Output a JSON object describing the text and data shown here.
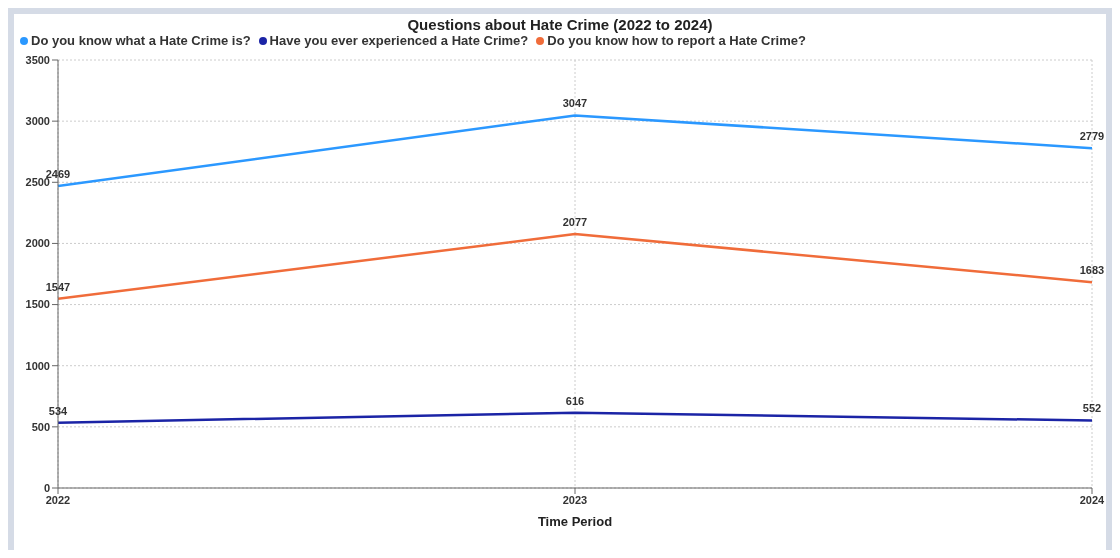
{
  "chart_data": {
    "type": "line",
    "title": "Questions about Hate Crime (2022 to 2024)",
    "xlabel": "Time Period",
    "categories": [
      "2022",
      "2023",
      "2024"
    ],
    "series": [
      {
        "name": "Do you know what a Hate Crime is?",
        "color": "#2b98ff",
        "values": [
          2469,
          3047,
          2779
        ]
      },
      {
        "name": "Have you ever experienced a Hate Crime?",
        "color": "#1b24a6",
        "values": [
          534,
          616,
          552
        ]
      },
      {
        "name": "Do you know how to report a Hate Crime?",
        "color": "#f06c3a",
        "values": [
          1547,
          2077,
          1683
        ]
      }
    ],
    "ylim": [
      0,
      3500
    ],
    "yticks": [
      0,
      500,
      1000,
      1500,
      2000,
      2500,
      3000,
      3500
    ],
    "grid": true,
    "legend": "top left",
    "data_labels": true,
    "marker": "none",
    "line_style": "solid"
  }
}
